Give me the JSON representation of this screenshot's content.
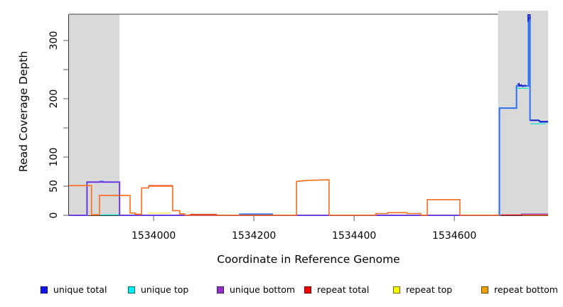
{
  "chart_data": {
    "type": "line",
    "title": "",
    "xlabel": "Coordinate in Reference Genome",
    "ylabel": "Read Coverage Depth",
    "xlim": [
      1533831,
      1534787
    ],
    "ylim": [
      0,
      345
    ],
    "grid": false,
    "legend_position": "bottom",
    "x_ticks": [
      {
        "value": 1534000,
        "label": "1534000"
      },
      {
        "value": 1534200,
        "label": "1534200"
      },
      {
        "value": 1534400,
        "label": "1534400"
      },
      {
        "value": 1534600,
        "label": "1534600"
      }
    ],
    "y_ticks": [
      {
        "value": 0,
        "label": "0"
      },
      {
        "value": 50,
        "label": "50"
      },
      {
        "value": 100,
        "label": "100"
      },
      {
        "value": 150,
        "label": ""
      },
      {
        "value": 200,
        "label": "200"
      },
      {
        "value": 250,
        "label": ""
      },
      {
        "value": 300,
        "label": "300"
      }
    ],
    "shaded_regions": [
      {
        "x0": 1533831,
        "x1": 1533932,
        "color": "#d9d9d9",
        "extends_above_frame": false
      },
      {
        "x0": 1534687,
        "x1": 1534787,
        "color": "#d9d9d9",
        "extends_above_frame": true
      }
    ],
    "series": [
      {
        "name": "unique total",
        "color": "#2e6ff2",
        "width": 2,
        "segments": [
          [
            [
              1533831,
              0
            ],
            [
              1533867,
              0
            ],
            [
              1533867,
              57
            ],
            [
              1533893,
              57
            ],
            [
              1533893,
              58
            ],
            [
              1533899,
              58
            ],
            [
              1533899,
              57
            ],
            [
              1533932,
              57
            ],
            [
              1533932,
              0
            ],
            [
              1534172,
              0
            ],
            [
              1534172,
              2
            ],
            [
              1534237,
              2
            ],
            [
              1534237,
              0
            ],
            [
              1534690,
              0
            ],
            [
              1534690,
              184
            ],
            [
              1534724,
              184
            ],
            [
              1534724,
              222
            ],
            [
              1534748,
              222
            ],
            [
              1534748,
              340
            ],
            [
              1534751,
              340
            ],
            [
              1534751,
              163
            ],
            [
              1534768,
              163
            ],
            [
              1534771,
              160
            ],
            [
              1534787,
              160
            ]
          ]
        ]
      },
      {
        "name": "unique top",
        "color": "#35e2d2",
        "width": 1.5,
        "segments": [
          [
            [
              1533875,
              1
            ],
            [
              1533932,
              1
            ]
          ],
          [
            [
              1534725,
              218
            ],
            [
              1534748,
              218
            ]
          ],
          [
            [
              1534752,
              157
            ],
            [
              1534782,
              157
            ]
          ]
        ]
      },
      {
        "name": "unique bottom",
        "color": "#7b2fe0",
        "width": 1.6,
        "segments": [
          [
            [
              1533831,
              0
            ],
            [
              1533867,
              0
            ],
            [
              1533867,
              57
            ],
            [
              1533932,
              57
            ],
            [
              1533932,
              0
            ],
            [
              1534690,
              0
            ]
          ],
          [
            [
              1534733,
              2
            ],
            [
              1534787,
              2
            ]
          ]
        ]
      },
      {
        "name": "repeat total",
        "color": "#e62e2e",
        "width": 1.5,
        "segments": [
          [
            [
              1533990,
              51
            ],
            [
              1534038,
              51
            ]
          ],
          [
            [
              1534072,
              1.5
            ],
            [
              1534126,
              1.5
            ]
          ],
          [
            [
              1534693,
              0.7
            ],
            [
              1534736,
              0.7
            ]
          ]
        ]
      },
      {
        "name": "repeat top",
        "color": "#ffe955",
        "width": 1.5,
        "segments": [
          [
            [
              1533876,
              0.7
            ],
            [
              1533891,
              0.7
            ]
          ],
          [
            [
              1533989,
              4
            ],
            [
              1534034,
              4
            ]
          ]
        ]
      },
      {
        "name": "repeat bottom",
        "color": "#ff6a1a",
        "width": 1.6,
        "segments": [
          [
            [
              1533831,
              51
            ],
            [
              1533876,
              51
            ],
            [
              1533876,
              1
            ],
            [
              1533892,
              1
            ],
            [
              1533892,
              34
            ],
            [
              1533953,
              34
            ],
            [
              1533953,
              4
            ],
            [
              1533963,
              4
            ],
            [
              1533963,
              2
            ],
            [
              1533976,
              2
            ],
            [
              1533976,
              47
            ],
            [
              1533990,
              47
            ],
            [
              1533990,
              50
            ],
            [
              1534038,
              50
            ],
            [
              1534038,
              8
            ],
            [
              1534052,
              8
            ],
            [
              1534052,
              2.5
            ],
            [
              1534062,
              2.5
            ],
            [
              1534062,
              0.3
            ],
            [
              1534285,
              0.3
            ],
            [
              1534285,
              58
            ],
            [
              1534307,
              60
            ],
            [
              1534350,
              61
            ],
            [
              1534350,
              0.3
            ],
            [
              1534443,
              0.3
            ],
            [
              1534443,
              3
            ],
            [
              1534467,
              3
            ],
            [
              1534467,
              4.5
            ],
            [
              1534506,
              4.5
            ],
            [
              1534506,
              3
            ],
            [
              1534533,
              3
            ],
            [
              1534533,
              0.3
            ],
            [
              1534546,
              0.3
            ],
            [
              1534546,
              27
            ],
            [
              1534611,
              27
            ],
            [
              1534611,
              0.3
            ],
            [
              1534690,
              0.3
            ]
          ],
          [
            [
              1534736,
              0.5
            ],
            [
              1534787,
              0.5
            ]
          ]
        ]
      },
      {
        "name": "unique total dark overlay",
        "color": "#1515c8",
        "width": 1.6,
        "segments": [
          [
            [
              1534726,
              224
            ],
            [
              1534729,
              226
            ],
            [
              1534730,
              222
            ],
            [
              1534734,
              224
            ],
            [
              1534736,
              221
            ],
            [
              1534740,
              223
            ],
            [
              1534744,
              222
            ]
          ],
          [
            [
              1534747,
              332
            ],
            [
              1534747,
              344
            ],
            [
              1534751,
              344
            ],
            [
              1534751,
              336
            ]
          ],
          [
            [
              1534752,
              163
            ],
            [
              1534769,
              163
            ],
            [
              1534771,
              161
            ],
            [
              1534787,
              161
            ]
          ]
        ]
      }
    ],
    "legend": [
      {
        "label": "unique total",
        "fill": "#1414f0",
        "border": "#000080"
      },
      {
        "label": "unique top",
        "fill": "#00f0f0",
        "border": "#006868"
      },
      {
        "label": "unique bottom",
        "fill": "#9932cc",
        "border": "#3d1060"
      },
      {
        "label": "repeat total",
        "fill": "#ee0000",
        "border": "#6b0000"
      },
      {
        "label": "repeat top",
        "fill": "#fbfb00",
        "border": "#6b6b00"
      },
      {
        "label": "repeat bottom",
        "fill": "#f5a000",
        "border": "#6b4700"
      }
    ]
  }
}
